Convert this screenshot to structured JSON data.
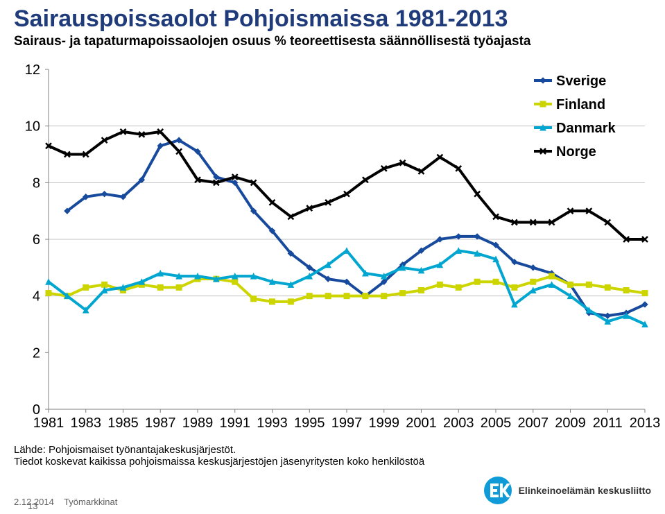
{
  "title": "Sairauspoissaolot Pohjoismaissa 1981-2013",
  "subtitle": "Sairaus- ja tapaturmapoissaolojen osuus % teoreettisesta säännöllisestä työajasta",
  "source_line1": "Lähde: Pohjoismaiset työnantajakeskusjärjestöt.",
  "source_line2": "Tiedot koskevat kaikissa pohjoismaissa keskusjärjestöjen jäsenyritysten koko henkilöstöä",
  "footer_date": "2.12.2014",
  "footer_label": "Työmarkkinat",
  "page_number": "13",
  "logo_text": "Elinkeinoelämän keskusliitto",
  "logo_mark_fill": "#0e9bd8",
  "chart": {
    "type": "line",
    "background_color": "#ffffff",
    "grid_color": "#c0c0c0",
    "axis_color": "#808080",
    "ylim": [
      0,
      12
    ],
    "ytick_step": 2,
    "xlabels": [
      "1981",
      "1983",
      "1985",
      "1987",
      "1989",
      "1991",
      "1993",
      "1995",
      "1997",
      "1999",
      "2001",
      "2003",
      "2005",
      "2007",
      "2009",
      "2011",
      "2013"
    ],
    "x_years": [
      1981,
      1982,
      1983,
      1984,
      1985,
      1986,
      1987,
      1988,
      1989,
      1990,
      1991,
      1992,
      1993,
      1994,
      1995,
      1996,
      1997,
      1998,
      1999,
      2000,
      2001,
      2002,
      2003,
      2004,
      2005,
      2006,
      2007,
      2008,
      2009,
      2010,
      2011,
      2012,
      2013
    ],
    "tick_fontsize": 20,
    "legend_fontsize": 20,
    "line_width": 4,
    "marker_size": 8,
    "legend": {
      "position": "top-right-inside",
      "items": [
        "Sverige",
        "Finland",
        "Danmark",
        "Norge"
      ],
      "colors": [
        "#174a9c",
        "#cdd500",
        "#00a6cf",
        "#000000"
      ]
    },
    "series": [
      {
        "name": "Sverige",
        "color": "#174a9c",
        "marker": "diamond",
        "values": [
          null,
          7.0,
          7.5,
          7.6,
          7.5,
          8.1,
          9.3,
          9.5,
          9.1,
          8.2,
          8.0,
          7.0,
          6.3,
          5.5,
          5.0,
          4.6,
          4.5,
          4.0,
          4.5,
          5.1,
          5.6,
          6.0,
          6.1,
          6.1,
          5.8,
          5.2,
          5.0,
          4.8,
          4.4,
          3.4,
          3.3,
          3.4,
          3.7
        ]
      },
      {
        "name": "Finland",
        "color": "#cdd500",
        "marker": "square",
        "values": [
          4.1,
          4.0,
          4.3,
          4.4,
          4.2,
          4.4,
          4.3,
          4.3,
          4.6,
          4.6,
          4.5,
          3.9,
          3.8,
          3.8,
          4.0,
          4.0,
          4.0,
          4.0,
          4.0,
          4.1,
          4.2,
          4.4,
          4.3,
          4.5,
          4.5,
          4.3,
          4.5,
          4.7,
          4.4,
          4.4,
          4.3,
          4.2,
          4.1
        ]
      },
      {
        "name": "Danmark",
        "color": "#00a6cf",
        "marker": "triangle",
        "values": [
          4.5,
          4.0,
          3.5,
          4.2,
          4.3,
          4.5,
          4.8,
          4.7,
          4.7,
          4.6,
          4.7,
          4.7,
          4.5,
          4.4,
          4.7,
          5.1,
          5.6,
          4.8,
          4.7,
          5.0,
          4.9,
          5.1,
          5.6,
          5.5,
          5.3,
          3.7,
          4.2,
          4.4,
          4.0,
          3.5,
          3.1,
          3.3,
          3.0
        ]
      },
      {
        "name": "Norge",
        "color": "#000000",
        "marker": "x",
        "values": [
          9.3,
          9.0,
          9.0,
          9.5,
          9.8,
          9.7,
          9.8,
          9.1,
          8.1,
          8.0,
          8.2,
          8.0,
          7.3,
          6.8,
          7.1,
          7.3,
          7.6,
          8.1,
          8.5,
          8.7,
          8.4,
          8.9,
          8.5,
          7.6,
          6.8,
          6.6,
          6.6,
          6.6,
          7.0,
          7.0,
          6.6,
          6.0,
          6.0
        ]
      }
    ]
  }
}
